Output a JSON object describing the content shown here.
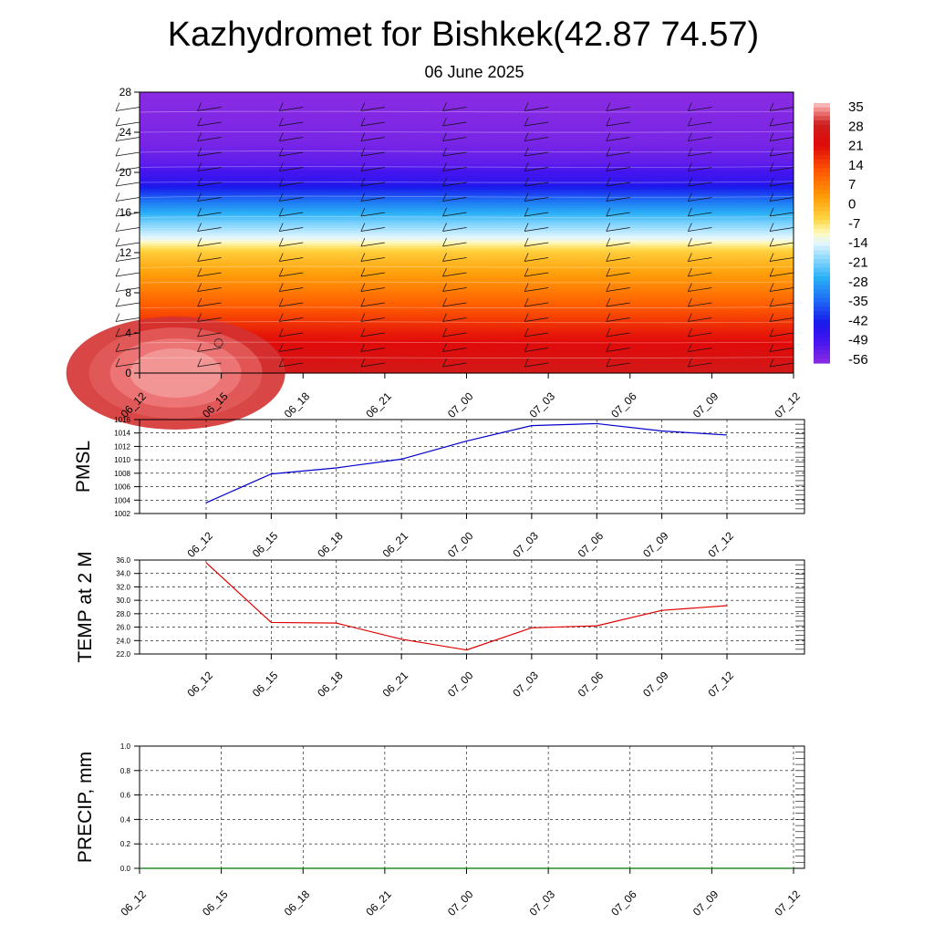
{
  "title": "Kazhydromet for Bishkek(42.87 74.57)",
  "subtitle": "06 June 2025",
  "chart_data": [
    {
      "type": "heatmap",
      "x_ticks": [
        "06_12",
        "06_15",
        "06_18",
        "06_21",
        "07_00",
        "07_03",
        "07_06",
        "07_09",
        "07_12"
      ],
      "y_ticks": [
        "0",
        "4",
        "8",
        "12",
        "16",
        "20",
        "24",
        "28"
      ],
      "ylim": [
        0,
        28
      ],
      "colorbar": {
        "labels": [
          "35",
          "28",
          "21",
          "14",
          "7",
          "0",
          "-7",
          "-14",
          "-21",
          "-28",
          "-35",
          "-42",
          "-49",
          "-56"
        ],
        "range": [
          -60,
          38
        ]
      },
      "profile_note": "temperature vs height; wind barbs overlaid",
      "profile": [
        {
          "y": 0,
          "value": 28
        },
        {
          "y": 2,
          "value": 24
        },
        {
          "y": 4,
          "value": 20
        },
        {
          "y": 6,
          "value": 14
        },
        {
          "y": 8,
          "value": 8
        },
        {
          "y": 10,
          "value": 2
        },
        {
          "y": 12,
          "value": -4
        },
        {
          "y": 12.8,
          "value": -9
        },
        {
          "y": 13.4,
          "value": -14
        },
        {
          "y": 15,
          "value": -22
        },
        {
          "y": 17,
          "value": -34
        },
        {
          "y": 19,
          "value": -48
        },
        {
          "y": 21,
          "value": -55
        },
        {
          "y": 23,
          "value": -58
        },
        {
          "y": 28,
          "value": -60
        }
      ],
      "warm_core": {
        "x_index": 1,
        "value": 36,
        "marker": "3"
      }
    },
    {
      "type": "line",
      "ylabel": "PMSL",
      "ylim": [
        1002,
        1016
      ],
      "y_ticks": [
        "1002",
        "1004",
        "1006",
        "1008",
        "1010",
        "1012",
        "1014",
        "1016"
      ],
      "categories": [
        "06_12",
        "06_15",
        "06_18",
        "06_21",
        "07_00",
        "07_03",
        "07_06",
        "07_09",
        "07_12"
      ],
      "series": [
        {
          "values": [
            1003.6,
            1007.9,
            1008.8,
            1010.1,
            1012.8,
            1015.1,
            1015.4,
            1014.3,
            1013.7
          ],
          "color": "#0000cc"
        }
      ]
    },
    {
      "type": "line",
      "ylabel": "TEMP at 2 M",
      "ylim": [
        22,
        36
      ],
      "y_ticks": [
        "22.0",
        "24.0",
        "26.0",
        "28.0",
        "30.0",
        "32.0",
        "34.0",
        "36.0"
      ],
      "categories": [
        "06_12",
        "06_15",
        "06_18",
        "06_21",
        "07_00",
        "07_03",
        "07_06",
        "07_09",
        "07_12"
      ],
      "series": [
        {
          "values": [
            35.6,
            26.7,
            26.6,
            24.2,
            22.6,
            25.9,
            26.2,
            28.5,
            29.2
          ],
          "color": "#e00000"
        }
      ]
    },
    {
      "type": "line",
      "ylabel": "PRECIP, mm",
      "ylim": [
        0,
        1
      ],
      "y_ticks": [
        "0.0",
        "0.2",
        "0.4",
        "0.6",
        "0.8",
        "1.0"
      ],
      "categories": [
        "06_12",
        "06_15",
        "06_18",
        "06_21",
        "07_00",
        "07_03",
        "07_06",
        "07_09",
        "07_12"
      ],
      "series": [
        {
          "values": [
            0,
            0,
            0,
            0,
            0,
            0,
            0,
            0,
            0
          ],
          "color": "#007700"
        }
      ]
    }
  ]
}
